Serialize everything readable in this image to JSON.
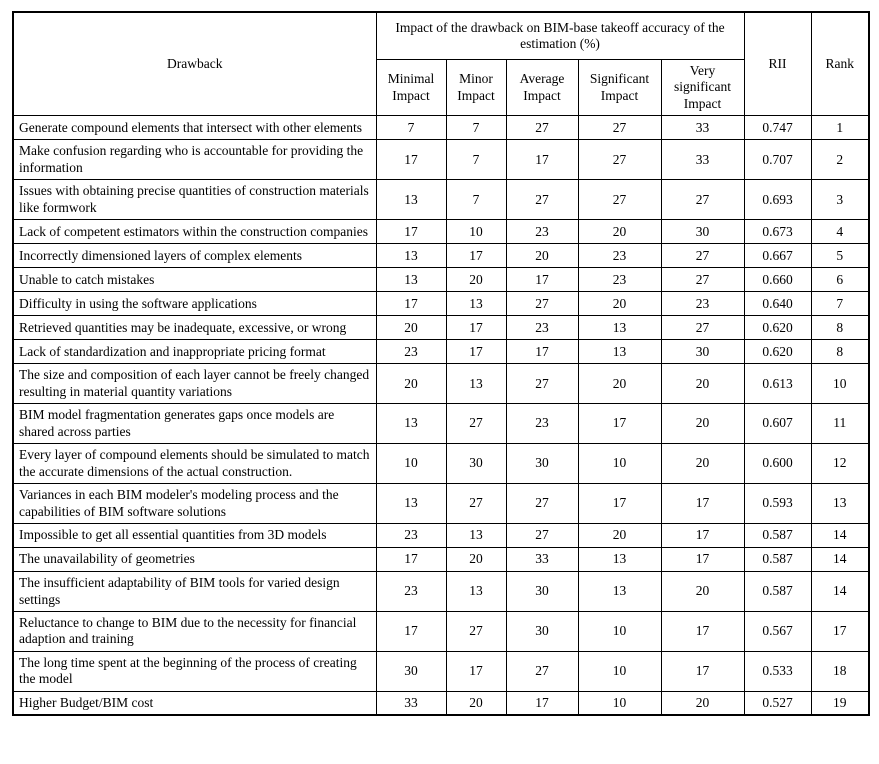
{
  "table": {
    "header": {
      "drawback": "Drawback",
      "impact_group": "Impact of the drawback on BIM-base takeoff accuracy of the estimation (%)",
      "impact_levels": [
        "Minimal Impact",
        "Minor Impact",
        "Average Impact",
        "Significant Impact",
        "Very significant Impact"
      ],
      "rii": "RII",
      "rank": "Rank"
    },
    "rows": [
      {
        "drawback": "Generate compound elements that intersect with other elements",
        "values": [
          7,
          7,
          27,
          27,
          33
        ],
        "rii": "0.747",
        "rank": "1"
      },
      {
        "drawback": "Make confusion regarding who is accountable for providing the information",
        "values": [
          17,
          7,
          17,
          27,
          33
        ],
        "rii": "0.707",
        "rank": "2"
      },
      {
        "drawback": "Issues with obtaining precise quantities of construction materials like formwork",
        "values": [
          13,
          7,
          27,
          27,
          27
        ],
        "rii": "0.693",
        "rank": "3"
      },
      {
        "drawback": "Lack of competent estimators within the construction companies",
        "values": [
          17,
          10,
          23,
          20,
          30
        ],
        "rii": "0.673",
        "rank": "4"
      },
      {
        "drawback": "Incorrectly dimensioned layers of complex elements",
        "values": [
          13,
          17,
          20,
          23,
          27
        ],
        "rii": "0.667",
        "rank": "5"
      },
      {
        "drawback": "Unable to catch mistakes",
        "values": [
          13,
          20,
          17,
          23,
          27
        ],
        "rii": "0.660",
        "rank": "6"
      },
      {
        "drawback": "Difficulty in using the software applications",
        "values": [
          17,
          13,
          27,
          20,
          23
        ],
        "rii": "0.640",
        "rank": "7"
      },
      {
        "drawback": "Retrieved quantities may be inadequate, excessive, or wrong",
        "values": [
          20,
          17,
          23,
          13,
          27
        ],
        "rii": "0.620",
        "rank": "8"
      },
      {
        "drawback": "Lack of standardization and inappropriate pricing format",
        "values": [
          23,
          17,
          17,
          13,
          30
        ],
        "rii": "0.620",
        "rank": "8"
      },
      {
        "drawback": "The size and composition of each layer cannot be freely changed resulting in material quantity variations",
        "values": [
          20,
          13,
          27,
          20,
          20
        ],
        "rii": "0.613",
        "rank": "10"
      },
      {
        "drawback": "BIM model fragmentation generates gaps once models are shared across parties",
        "values": [
          13,
          27,
          23,
          17,
          20
        ],
        "rii": "0.607",
        "rank": "11"
      },
      {
        "drawback": "Every layer of compound elements should be simulated to match the accurate dimensions of the actual construction.",
        "values": [
          10,
          30,
          30,
          10,
          20
        ],
        "rii": "0.600",
        "rank": "12"
      },
      {
        "drawback": "Variances in each BIM modeler's modeling process and the capabilities of BIM software solutions",
        "values": [
          13,
          27,
          27,
          17,
          17
        ],
        "rii": "0.593",
        "rank": "13"
      },
      {
        "drawback": "Impossible to get all essential quantities from 3D models",
        "values": [
          23,
          13,
          27,
          20,
          17
        ],
        "rii": "0.587",
        "rank": "14"
      },
      {
        "drawback": "The unavailability of geometries",
        "values": [
          17,
          20,
          33,
          13,
          17
        ],
        "rii": "0.587",
        "rank": "14"
      },
      {
        "drawback": "The insufficient adaptability of BIM tools for varied design settings",
        "values": [
          23,
          13,
          30,
          13,
          20
        ],
        "rii": "0.587",
        "rank": "14"
      },
      {
        "drawback": "Reluctance to change to BIM due to the necessity for financial adaption and training",
        "values": [
          17,
          27,
          30,
          10,
          17
        ],
        "rii": "0.567",
        "rank": "17"
      },
      {
        "drawback": "The long time spent at the beginning of the process of creating the model",
        "values": [
          30,
          17,
          27,
          10,
          17
        ],
        "rii": "0.533",
        "rank": "18"
      },
      {
        "drawback": "Higher Budget/BIM cost",
        "values": [
          33,
          20,
          17,
          10,
          20
        ],
        "rii": "0.527",
        "rank": "19"
      }
    ]
  },
  "colors": {
    "border": "#000000",
    "background": "#ffffff",
    "text": "#000000"
  }
}
